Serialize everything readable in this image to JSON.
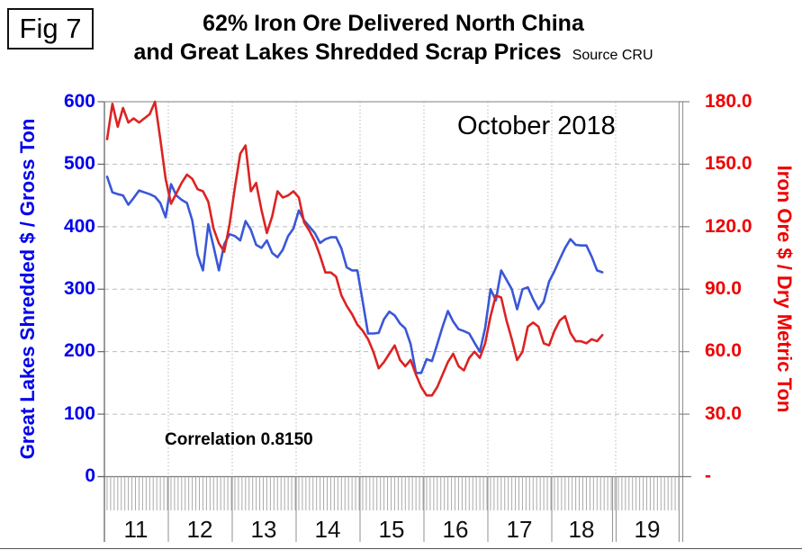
{
  "figure_label": "Fig 7",
  "header": {
    "title_line1": "62% Iron Ore Delivered North China",
    "title_line2": "and Great Lakes Shredded Scrap Prices",
    "source": "Source CRU"
  },
  "annotations": {
    "date_label": "October 2018",
    "correlation_label": "Correlation 0.8150"
  },
  "left_axis": {
    "title": "Great Lakes Shredded $ / Gross Ton",
    "color": "#0000EE",
    "min": 0,
    "max": 600,
    "ticks": [
      "600",
      "500",
      "400",
      "300",
      "200",
      "100",
      "0"
    ]
  },
  "right_axis": {
    "title": "Iron Ore $ / Dry Metric Ton",
    "color": "#EE0000",
    "min": 0,
    "max": 180,
    "ticks": [
      "180.0",
      "150.0",
      "120.0",
      "90.0",
      "60.0",
      "30.0",
      "-"
    ]
  },
  "x_axis": {
    "year_labels": [
      "11",
      "12",
      "13",
      "14",
      "15",
      "16",
      "17",
      "18",
      "19"
    ],
    "span_years": 9
  },
  "chart_data": {
    "type": "line",
    "title": "62% Iron Ore Delivered North China and Great Lakes Shredded Scrap Prices",
    "x_start": "2011-01",
    "x_end": "2018-10",
    "x_frequency": "monthly",
    "x_axis_range": [
      "2011-01",
      "2019-12"
    ],
    "grid": true,
    "legend_position": "none",
    "correlation": 0.815,
    "left_ylim": [
      0,
      600
    ],
    "right_ylim": [
      0,
      180
    ],
    "series": [
      {
        "name": "Great Lakes Shredded Scrap",
        "axis": "left",
        "unit": "$ / Gross Ton",
        "color": "#3A57D7",
        "monthly_values": [
          480,
          455,
          452,
          450,
          435,
          446,
          458,
          455,
          452,
          448,
          438,
          415,
          468,
          450,
          443,
          438,
          410,
          355,
          330,
          404,
          368,
          330,
          372,
          388,
          385,
          378,
          409,
          395,
          371,
          366,
          378,
          358,
          351,
          363,
          385,
          397,
          426,
          410,
          400,
          390,
          374,
          380,
          383,
          383,
          365,
          335,
          330,
          330,
          280,
          229,
          229,
          230,
          252,
          264,
          258,
          245,
          237,
          212,
          166,
          166,
          188,
          185,
          212,
          240,
          265,
          248,
          236,
          233,
          229,
          214,
          200,
          238,
          300,
          282,
          330,
          315,
          300,
          268,
          300,
          303,
          284,
          268,
          280,
          312,
          329,
          348,
          366,
          380,
          371,
          370,
          370,
          352,
          330,
          327
        ]
      },
      {
        "name": "62% Iron Ore Delivered North China",
        "axis": "right",
        "unit": "$ / Dry Metric Ton",
        "color": "#DC2323",
        "monthly_values": [
          162,
          179,
          168,
          177,
          170,
          172,
          170,
          172,
          174,
          180,
          162,
          143,
          131,
          136,
          141,
          145,
          143,
          138,
          137,
          132,
          119,
          112,
          108,
          121,
          139,
          155,
          159,
          137,
          141,
          128,
          117,
          125,
          137,
          134,
          135,
          137,
          134,
          122,
          118,
          113,
          106,
          98,
          98,
          96,
          87,
          82,
          78,
          73,
          70,
          66,
          60,
          52,
          55,
          59,
          63,
          56,
          53,
          56,
          49,
          43,
          39,
          39,
          43,
          49,
          55,
          59,
          53,
          51,
          57,
          60,
          57,
          64,
          77,
          87,
          86,
          75,
          66,
          56,
          60,
          72,
          74,
          72,
          64,
          63,
          70,
          75,
          77,
          69,
          65,
          65,
          64,
          66,
          65,
          68
        ]
      }
    ]
  }
}
